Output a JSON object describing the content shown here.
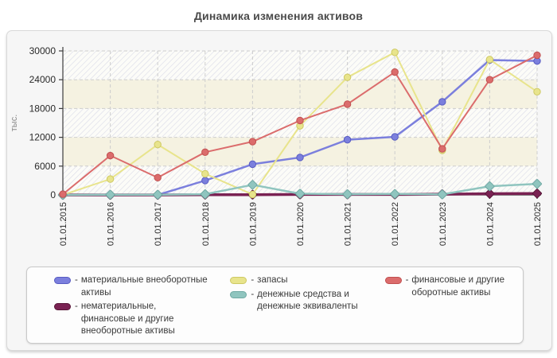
{
  "title": "Динамика изменения активов",
  "legend": {
    "prefix": "-"
  },
  "chart_data": {
    "type": "line",
    "title": "Динамика изменения активов",
    "xlabel": "",
    "ylabel": "тыс.",
    "ylim": [
      0,
      30000
    ],
    "ytick_step": 6000,
    "grid": true,
    "legend_position": "bottom",
    "categories": [
      "01.01.2015",
      "01.01.2016",
      "01.01.2017",
      "01.01.2018",
      "01.01.2019",
      "01.01.2020",
      "01.01.2021",
      "01.01.2022",
      "01.01.2023",
      "01.01.2024",
      "01.01.2025"
    ],
    "series": [
      {
        "name": "материальные внеоборотные активы",
        "color": "#7b7fdd",
        "border": "#585cc2",
        "marker": "circle",
        "line_width": 2.5,
        "values": [
          0,
          0,
          0,
          3000,
          6400,
          7800,
          11500,
          12100,
          19400,
          28100,
          27900
        ]
      },
      {
        "name": "нематериальные, финансовые и другие внеоборотные активы",
        "color": "#7a2253",
        "border": "#581638",
        "marker": "diamond",
        "line_width": 3.5,
        "values": [
          0,
          0,
          0,
          50,
          50,
          100,
          100,
          100,
          150,
          250,
          300
        ]
      },
      {
        "name": "запасы",
        "color": "#e8e48c",
        "border": "#cec963",
        "marker": "circle",
        "line_width": 2,
        "values": [
          0,
          3300,
          10500,
          4400,
          100,
          14400,
          24500,
          29700,
          9300,
          28200,
          21500
        ]
      },
      {
        "name": "денежные средства и денежные эквиваленты",
        "color": "#90c5bf",
        "border": "#6fa9a3",
        "marker": "diamond",
        "line_width": 2.5,
        "values": [
          0,
          50,
          50,
          150,
          2100,
          250,
          150,
          200,
          100,
          1800,
          2300
        ]
      },
      {
        "name": "финансовые и другие оборотные активы",
        "color": "#db6c6c",
        "border": "#c15050",
        "marker": "circle",
        "line_width": 2,
        "values": [
          150,
          8200,
          3600,
          8900,
          11100,
          15500,
          18900,
          25600,
          9600,
          24000,
          29100
        ]
      }
    ],
    "style": {
      "band_cream": "#f5f2e1",
      "band_white": "#fcfcf8",
      "hatch_line": "#dcdde9",
      "gridline": "#cdcdcd",
      "axis": "#3c3c3c",
      "tick_label": "#2a2a2a",
      "ylabel_color": "#8a8a8a"
    }
  }
}
